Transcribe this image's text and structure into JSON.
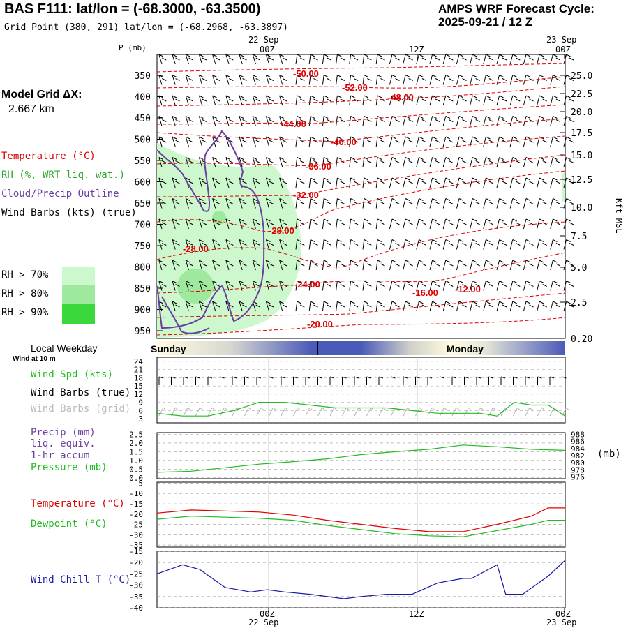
{
  "header": {
    "title": "BAS F111:  lat/lon = (-68.3000, -63.3500)",
    "grid_point": "Grid Point (380, 291) lat/lon = (-68.2968, -63.3897)",
    "cycle_label": "AMPS WRF Forecast Cycle:",
    "cycle_value": "2025-09-21 / 12  Z"
  },
  "time_axis": {
    "top_dates": [
      "22 Sep",
      "23 Sep"
    ],
    "ticks": [
      "00Z",
      "12Z",
      "00Z"
    ],
    "bottom_ticks": [
      "00Z",
      "12Z",
      "00Z"
    ],
    "bottom_dates": [
      "22 Sep",
      "23 Sep"
    ]
  },
  "legend": {
    "model_grid_label": "Model Grid ΔX:",
    "model_grid_value": "2.667 km",
    "temperature": "Temperature (°C)",
    "rh": "RH (%, WRT liq. wat.)",
    "cloud": "Cloud/Precip Outline",
    "wind": "Wind Barbs (kts) (true)",
    "rh_levels": [
      "RH > 70%",
      "RH > 80%",
      "RH > 90%"
    ],
    "rh_colors": [
      "#cdf7cd",
      "#9ee99e",
      "#3bd83b"
    ]
  },
  "colors": {
    "temperature": "#dd0000",
    "rh": "#2ea82e",
    "cloud": "#6a3fa0",
    "wind_true": "#000000",
    "wind_grid": "#b4b4b4",
    "dewpoint": "#22bb22",
    "wind_speed": "#22bb22",
    "pressure": "#22bb22",
    "precip": "#6a3fa0",
    "wind_chill": "#1a1aa8",
    "band_light": "#fffbe0",
    "band_dark": "#4a5ab8"
  },
  "cross_section": {
    "p_axis_label": "P (mb)",
    "p_ticks": [
      "350",
      "400",
      "450",
      "500",
      "550",
      "600",
      "650",
      "700",
      "750",
      "800",
      "850",
      "900",
      "950"
    ],
    "h_axis_label": "Kft MSL",
    "h_ticks": [
      "25.0",
      "22.5",
      "20.0",
      "17.5",
      "15.0",
      "12.5",
      "10.0",
      "7.5",
      "5.0",
      "2.5",
      "0.20"
    ],
    "isotherm_labels": [
      "-50.00",
      "-52.00",
      "-48.00",
      "-44.00",
      "-40.00",
      "-36.00",
      "-32.00",
      "-28.00",
      "-28.00",
      "-24.00",
      "-16.00",
      "-12.00",
      "-20.00"
    ]
  },
  "day_band": {
    "label_left": "Local Weekday",
    "day1": "Sunday",
    "day2": "Monday"
  },
  "panel_wind": {
    "note": "Wind at 10 m",
    "spd_label": "Wind Spd (kts)",
    "barbs_true_label": "Wind Barbs (true)",
    "barbs_grid_label": "Wind Barbs (grid)",
    "y_ticks": [
      "24",
      "21",
      "18",
      "15",
      "12",
      "9",
      "6",
      "3"
    ]
  },
  "panel_precip": {
    "precip_label_1": "Precip (mm)",
    "precip_label_2": "liq. equiv.",
    "precip_label_3": "1-hr accum",
    "pressure_label": "Pressure (mb)",
    "left_ticks": [
      "2.5",
      "2.0",
      "1.5",
      "1.0",
      "0.5",
      "0.0"
    ],
    "right_ticks": [
      "988",
      "986",
      "984",
      "982",
      "980",
      "978",
      "976"
    ],
    "right_unit": "(mb)"
  },
  "panel_temp": {
    "temp_label": "Temperature (°C)",
    "dew_label": "Dewpoint (°C)",
    "y_ticks": [
      "-5",
      "-10",
      "-15",
      "-20",
      "-25",
      "-30",
      "-35"
    ]
  },
  "panel_chill": {
    "label": "Wind Chill T (°C)",
    "y_ticks": [
      "-15",
      "-20",
      "-25",
      "-30",
      "-35",
      "-40"
    ]
  },
  "chart_data": [
    {
      "type": "line",
      "title": "Wind Spd (kts)",
      "x_hours": [
        0,
        3,
        6,
        9,
        12,
        15,
        18,
        21,
        24,
        27,
        30,
        33,
        36,
        38,
        40,
        42,
        44,
        46,
        48
      ],
      "ylim": [
        3,
        24
      ],
      "series": [
        {
          "name": "Wind Spd (kts)",
          "values": [
            5,
            4,
            4,
            6,
            9,
            9,
            8,
            7,
            7,
            7,
            6,
            5,
            5,
            5,
            4,
            9,
            8,
            8,
            4
          ]
        }
      ]
    },
    {
      "type": "line",
      "title": "Pressure (mb)",
      "x_hours": [
        0,
        4,
        8,
        12,
        16,
        20,
        24,
        28,
        32,
        36,
        40,
        44,
        48
      ],
      "ylim": [
        976,
        988
      ],
      "series": [
        {
          "name": "Pressure (mb)",
          "values": [
            977.3,
            977.6,
            978.6,
            979.6,
            980.3,
            981.1,
            982.3,
            983.1,
            983.8,
            985.0,
            984.5,
            983.8,
            983.5
          ]
        }
      ]
    },
    {
      "type": "line",
      "title": "Temperature / Dewpoint (°C)",
      "x_hours": [
        0,
        4,
        8,
        12,
        16,
        20,
        24,
        28,
        32,
        36,
        40,
        44,
        46,
        48
      ],
      "ylim": [
        -37,
        -5
      ],
      "series": [
        {
          "name": "Temperature (°C)",
          "values": [
            -19.5,
            -18,
            -18.5,
            -19,
            -20.5,
            -23,
            -25,
            -27,
            -28.5,
            -28.5,
            -25,
            -21,
            -17,
            -17
          ]
        },
        {
          "name": "Dewpoint (°C)",
          "values": [
            -22.5,
            -21,
            -21.5,
            -22,
            -23,
            -25.5,
            -27.5,
            -29.5,
            -30.5,
            -31,
            -28,
            -25,
            -23,
            -23
          ]
        }
      ]
    },
    {
      "type": "line",
      "title": "Wind Chill T (°C)",
      "x_hours": [
        0,
        3,
        5,
        8,
        11,
        13,
        15,
        18,
        22,
        24,
        27,
        30,
        33,
        36,
        37,
        40,
        41,
        43,
        46,
        48
      ],
      "ylim": [
        -40,
        -15
      ],
      "series": [
        {
          "name": "Wind Chill T (°C)",
          "values": [
            -25,
            -21,
            -23,
            -31,
            -33,
            -32,
            -33,
            -34,
            -36,
            -35,
            -34,
            -34,
            -29,
            -27,
            -27,
            -21,
            -34,
            -34,
            -26,
            -19
          ]
        }
      ]
    }
  ]
}
